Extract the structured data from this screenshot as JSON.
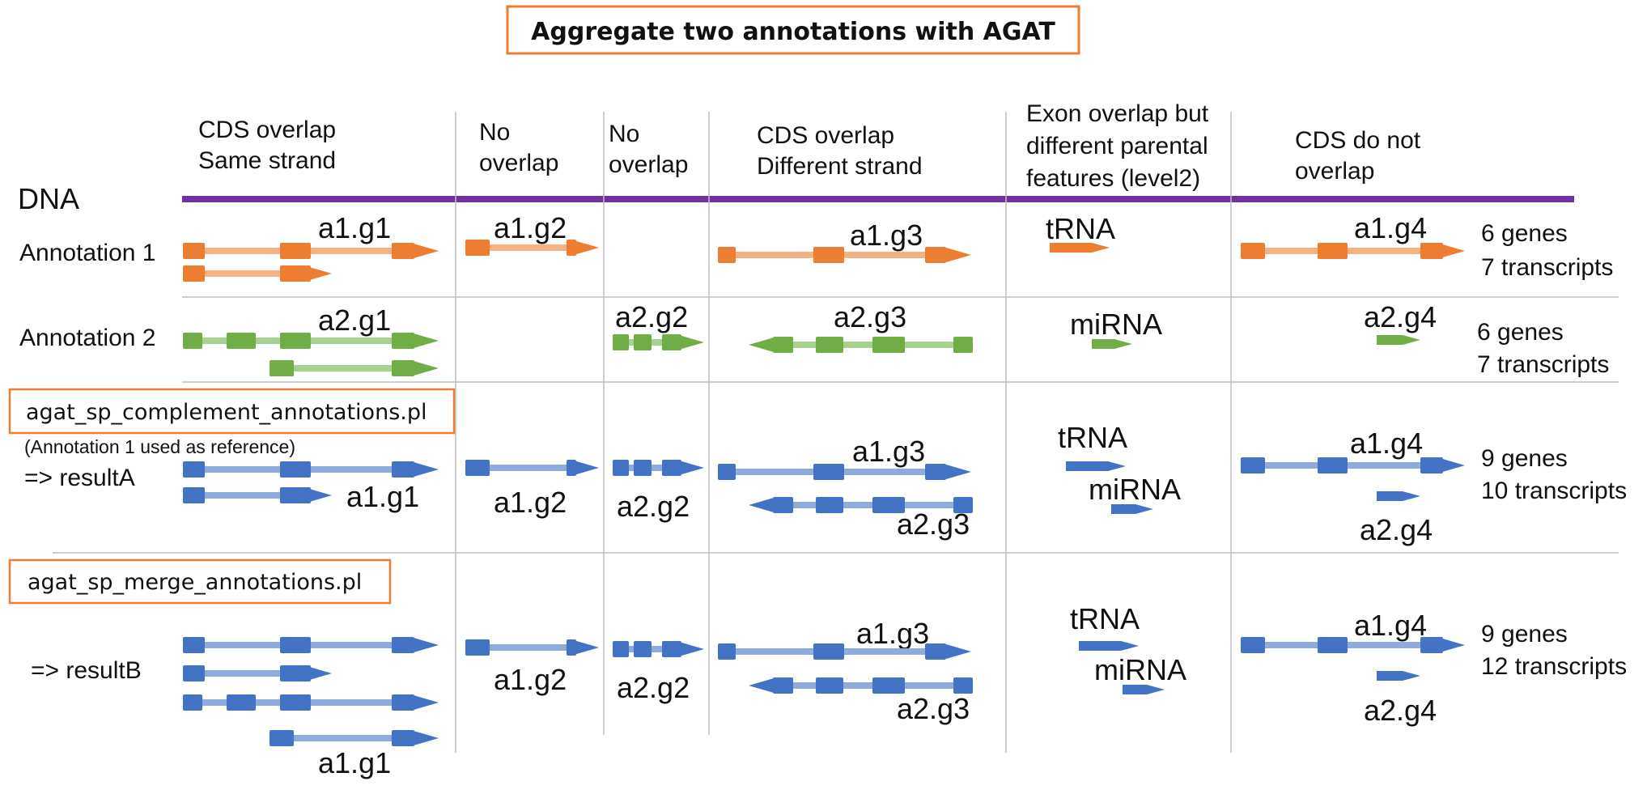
{
  "title": "Aggregate two annotations with AGAT",
  "dna_label": "DNA",
  "columns": [
    [
      "CDS overlap",
      "Same strand"
    ],
    [
      "No",
      "overlap"
    ],
    [
      "No",
      "overlap"
    ],
    [
      "CDS overlap",
      "Different strand"
    ],
    [
      "Exon overlap but",
      "different parental",
      "features (level2)"
    ],
    [
      "CDS do not",
      "overlap"
    ]
  ],
  "rows": {
    "annotation1": {
      "label": "Annotation 1",
      "summary": [
        "6 genes",
        "7 transcripts"
      ],
      "gene_labels": [
        "a1.g1",
        "a1.g2",
        "a1.g3",
        "tRNA",
        "a1.g4"
      ]
    },
    "annotation2": {
      "label": "Annotation 2",
      "summary": [
        "6 genes",
        "7 transcripts"
      ],
      "gene_labels": [
        "a2.g1",
        "a2.g2",
        "a2.g3",
        "miRNA",
        "a2.g4"
      ]
    },
    "resultA": {
      "tool": "agat_sp_complement_annotations.pl",
      "note": "(Annotation 1 used as reference)",
      "label": "=> resultA",
      "summary": [
        "9 genes",
        "10 transcripts"
      ],
      "gene_labels": [
        "a1.g1",
        "a1.g2",
        "a2.g2",
        "a1.g3",
        "a2.g3",
        "tRNA",
        "miRNA",
        "a1.g4",
        "a2.g4"
      ]
    },
    "resultB": {
      "tool": "agat_sp_merge_annotations.pl",
      "label": "=> resultB",
      "summary": [
        "9 genes",
        "12 transcripts"
      ],
      "gene_labels": [
        "a1.g1",
        "a1.g2",
        "a2.g2",
        "a1.g3",
        "a2.g3",
        "tRNA",
        "miRNA",
        "a1.g4",
        "a2.g4"
      ]
    }
  },
  "colors": {
    "annotation1": "#ED7D31",
    "annotation1_intron": "#F4B183",
    "annotation2": "#70AD47",
    "annotation2_intron": "#A9D18E",
    "result": "#4472C4",
    "result_intron": "#8FAADC",
    "dna_line": "#7030A0",
    "tool_box_border": "#ED7D31",
    "grid": "#BFBFBF"
  }
}
